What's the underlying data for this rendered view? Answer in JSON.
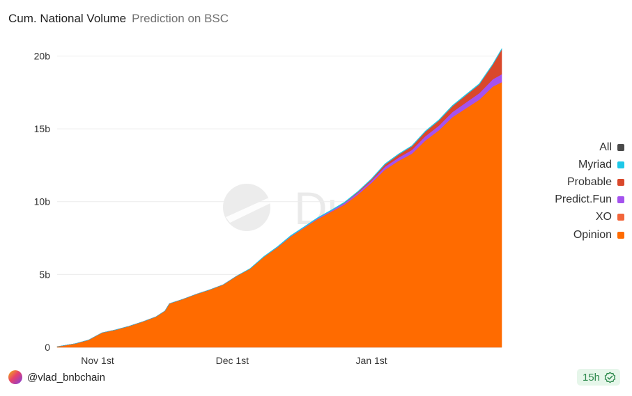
{
  "header": {
    "title": "Cum. National Volume",
    "subtitle": "Prediction on BSC"
  },
  "watermark": {
    "text": "Dune"
  },
  "footer": {
    "author": "@vlad_bnbchain",
    "refresh": "15h"
  },
  "chart_data": {
    "type": "area",
    "stacked": true,
    "title": "Cum. National Volume",
    "subtitle": "Prediction on BSC",
    "xlabel": "",
    "ylabel": "",
    "ylim": [
      0,
      20.5
    ],
    "yunit": "billions",
    "y_ticks": [
      {
        "value": 0,
        "label": "0"
      },
      {
        "value": 5,
        "label": "5b"
      },
      {
        "value": 10,
        "label": "10b"
      },
      {
        "value": 15,
        "label": "15b"
      },
      {
        "value": 20,
        "label": "20b"
      }
    ],
    "xlim": [
      "2025-10-23",
      "2026-01-30"
    ],
    "x_ticks": [
      {
        "date": "2025-11-01",
        "label": "Nov 1st"
      },
      {
        "date": "2025-12-01",
        "label": "Dec 1st"
      },
      {
        "date": "2026-01-01",
        "label": "Jan 1st"
      }
    ],
    "grid": true,
    "legend_position": "right",
    "legend": [
      {
        "name": "All",
        "color": "#4a4a4a"
      },
      {
        "name": "Myriad",
        "color": "#1ec8e8"
      },
      {
        "name": "Probable",
        "color": "#d9482b"
      },
      {
        "name": "Predict.Fun",
        "color": "#a452ee"
      },
      {
        "name": "XO",
        "color": "#f2653a"
      },
      {
        "name": "Opinion",
        "color": "#ff6b00"
      }
    ],
    "x": [
      "2025-10-23",
      "2025-10-27",
      "2025-10-30",
      "2025-11-02",
      "2025-11-05",
      "2025-11-08",
      "2025-11-11",
      "2025-11-14",
      "2025-11-16",
      "2025-11-17",
      "2025-11-20",
      "2025-11-23",
      "2025-11-26",
      "2025-11-29",
      "2025-12-02",
      "2025-12-05",
      "2025-12-08",
      "2025-12-11",
      "2025-12-14",
      "2025-12-17",
      "2025-12-20",
      "2025-12-23",
      "2025-12-26",
      "2025-12-29",
      "2026-01-01",
      "2026-01-04",
      "2026-01-07",
      "2026-01-10",
      "2026-01-13",
      "2026-01-16",
      "2026-01-19",
      "2026-01-22",
      "2026-01-25",
      "2026-01-28",
      "2026-01-30"
    ],
    "series": [
      {
        "name": "Opinion",
        "color": "#ff6b00",
        "values": [
          0.05,
          0.25,
          0.5,
          1.0,
          1.2,
          1.45,
          1.75,
          2.1,
          2.5,
          3.0,
          3.3,
          3.65,
          3.95,
          4.3,
          4.9,
          5.4,
          6.2,
          6.85,
          7.6,
          8.2,
          8.8,
          9.3,
          9.8,
          10.5,
          11.3,
          12.2,
          12.8,
          13.3,
          14.2,
          14.9,
          15.8,
          16.4,
          17.0,
          17.9,
          18.2
        ]
      },
      {
        "name": "Predict.Fun",
        "color": "#a452ee",
        "values": [
          0,
          0,
          0,
          0,
          0,
          0,
          0,
          0,
          0,
          0,
          0,
          0,
          0,
          0,
          0,
          0,
          0,
          0.01,
          0.02,
          0.03,
          0.05,
          0.07,
          0.1,
          0.12,
          0.15,
          0.2,
          0.22,
          0.25,
          0.3,
          0.32,
          0.35,
          0.4,
          0.45,
          0.5,
          0.55
        ]
      },
      {
        "name": "Probable",
        "color": "#d9482b",
        "values": [
          0,
          0,
          0,
          0,
          0,
          0,
          0,
          0,
          0,
          0,
          0,
          0,
          0,
          0,
          0,
          0,
          0,
          0,
          0,
          0,
          0,
          0,
          0.02,
          0.05,
          0.08,
          0.15,
          0.2,
          0.25,
          0.3,
          0.35,
          0.4,
          0.5,
          0.6,
          1.0,
          1.7
        ]
      },
      {
        "name": "Myriad",
        "color": "#1ec8e8",
        "values": [
          0,
          0,
          0,
          0,
          0,
          0,
          0,
          0,
          0,
          0,
          0,
          0,
          0,
          0,
          0,
          0.02,
          0.03,
          0.04,
          0.05,
          0.05,
          0.05,
          0.05,
          0.05,
          0.05,
          0.05,
          0.05,
          0.05,
          0.05,
          0.05,
          0.05,
          0.05,
          0.05,
          0.05,
          0.05,
          0.05
        ]
      }
    ]
  }
}
